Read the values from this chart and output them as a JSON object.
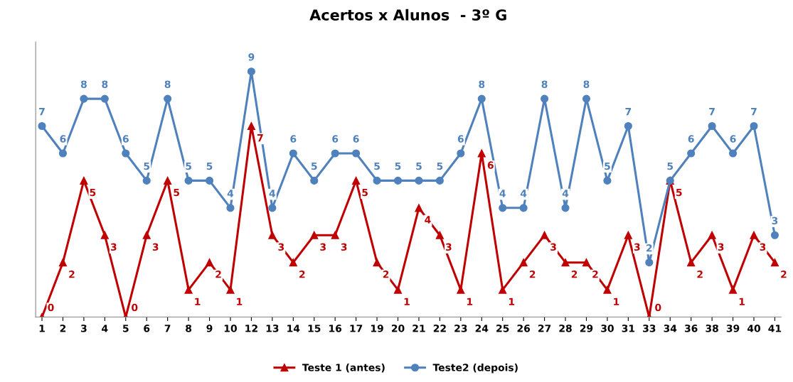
{
  "chart_data": {
    "type": "line",
    "title": "Acertos x Alunos  - 3º G",
    "categories": [
      "1",
      "2",
      "3",
      "4",
      "5",
      "6",
      "7",
      "8",
      "9",
      "10",
      "12",
      "13",
      "14",
      "15",
      "16",
      "17",
      "19",
      "20",
      "21",
      "22",
      "23",
      "24",
      "25",
      "26",
      "27",
      "28",
      "29",
      "30",
      "31",
      "33",
      "34",
      "36",
      "38",
      "39",
      "40",
      "41"
    ],
    "series": [
      {
        "name": "Teste 1 (antes)",
        "color": "#c00000",
        "marker": "triangle",
        "values": [
          0,
          2,
          5,
          3,
          0,
          3,
          5,
          1,
          2,
          1,
          7,
          3,
          2,
          3,
          3,
          5,
          2,
          1,
          4,
          3,
          1,
          6,
          1,
          2,
          3,
          2,
          2,
          1,
          3,
          0,
          5,
          2,
          3,
          1,
          3,
          2
        ]
      },
      {
        "name": "Teste2 (depois)",
        "color": "#4f81bd",
        "marker": "circle",
        "values": [
          7,
          6,
          8,
          8,
          6,
          5,
          8,
          5,
          5,
          4,
          9,
          4,
          6,
          5,
          6,
          6,
          5,
          5,
          5,
          5,
          6,
          8,
          4,
          4,
          8,
          4,
          8,
          5,
          7,
          2,
          5,
          6,
          7,
          6,
          7,
          3
        ]
      }
    ],
    "data_labels": true,
    "tick_labels": "x",
    "legend": "bottom",
    "grid": false,
    "line_style": "solid"
  }
}
